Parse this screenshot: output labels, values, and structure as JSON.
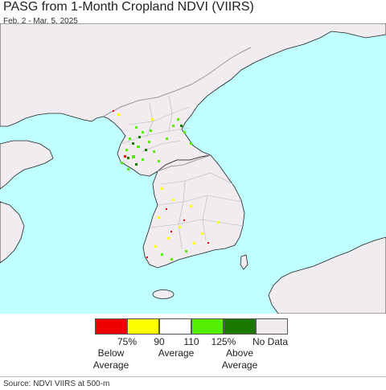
{
  "header": {
    "title": "PASG from 1-Month Cropland NDVI (VIIRS)",
    "date_range": "Feb. 2 - Mar. 5, 2025"
  },
  "map": {
    "colors": {
      "sea": "#bfffff",
      "land": "#f0ecf0",
      "border": "#9a9a9a",
      "coast": "#222222"
    }
  },
  "legend": {
    "classes": [
      {
        "name": "<75%",
        "color": "#ee0000"
      },
      {
        "name": "75-90%",
        "color": "#ffff00"
      },
      {
        "name": "90-110%",
        "color": "#ffffff"
      },
      {
        "name": "110-125%",
        "color": "#55ee00"
      },
      {
        "name": ">125%",
        "color": "#1a7a00"
      },
      {
        "name": "No Data",
        "color": "#eeeaee"
      }
    ],
    "ticks": [
      "75%",
      "90",
      "110",
      "125%"
    ],
    "no_data_label": "No Data",
    "below_label": "Below\nAverage",
    "average_label": "Average",
    "above_label": "Above\nAverage"
  },
  "footer": {
    "source": "Source: NDVI VIIRS at 500-m"
  }
}
